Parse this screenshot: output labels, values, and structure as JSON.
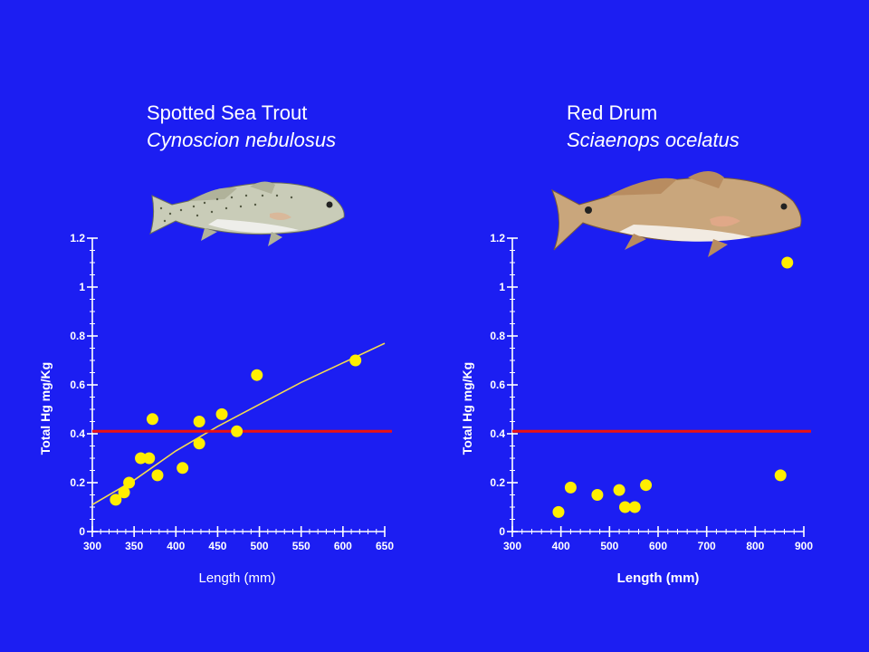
{
  "colors": {
    "background": "#1c1ef2",
    "axis": "#ffffff",
    "points": "#ffee00",
    "fit_line": "#f5dc50",
    "threshold": "#ee1111"
  },
  "chart_data": [
    {
      "type": "scatter",
      "title": "Spotted Sea Trout",
      "subtitle": "Cynoscion nebulosus",
      "xlabel": "Length (mm)",
      "ylabel": "Total Hg mg/Kg",
      "xlim": [
        300,
        650
      ],
      "ylim": [
        0,
        1.2
      ],
      "xticks": [
        300,
        350,
        400,
        450,
        500,
        550,
        600,
        650
      ],
      "yticks": [
        0,
        0.2,
        0.4,
        0.6,
        0.8,
        1,
        1.2
      ],
      "xtick_labels": [
        "300",
        "350",
        "400",
        "450",
        "500",
        "550",
        "600",
        "650"
      ],
      "ytick_labels": [
        "0",
        "0.2",
        "0.4",
        "0.6",
        "0.8",
        "1",
        "1.2"
      ],
      "x_minor": 10,
      "y_minor": 0.05,
      "grid": false,
      "illustration": "spotted-sea-trout",
      "threshold": 0.41,
      "trend": [
        [
          300,
          0.11
        ],
        [
          350,
          0.21
        ],
        [
          400,
          0.33
        ],
        [
          450,
          0.43
        ],
        [
          500,
          0.52
        ],
        [
          550,
          0.61
        ],
        [
          600,
          0.69
        ],
        [
          650,
          0.77
        ]
      ],
      "points": [
        {
          "x": 328,
          "y": 0.13
        },
        {
          "x": 338,
          "y": 0.16
        },
        {
          "x": 344,
          "y": 0.2
        },
        {
          "x": 358,
          "y": 0.3
        },
        {
          "x": 368,
          "y": 0.3
        },
        {
          "x": 378,
          "y": 0.23
        },
        {
          "x": 372,
          "y": 0.46
        },
        {
          "x": 408,
          "y": 0.26
        },
        {
          "x": 428,
          "y": 0.36
        },
        {
          "x": 428,
          "y": 0.45
        },
        {
          "x": 455,
          "y": 0.48
        },
        {
          "x": 473,
          "y": 0.41
        },
        {
          "x": 497,
          "y": 0.64
        },
        {
          "x": 615,
          "y": 0.7
        }
      ]
    },
    {
      "type": "scatter",
      "title": "Red Drum",
      "subtitle": "Sciaenops ocelatus",
      "xlabel": "Length (mm)",
      "ylabel": "Total Hg mg/Kg",
      "xlim": [
        300,
        900
      ],
      "ylim": [
        0,
        1.2
      ],
      "xticks": [
        300,
        400,
        500,
        600,
        700,
        800,
        900
      ],
      "yticks": [
        0,
        0.2,
        0.4,
        0.6,
        0.8,
        1,
        1.2
      ],
      "xtick_labels": [
        "300",
        "400",
        "500",
        "600",
        "700",
        "800",
        "900"
      ],
      "ytick_labels": [
        "0",
        "0.2",
        "0.4",
        "0.6",
        "0.8",
        "1",
        "1.2"
      ],
      "x_minor": 20,
      "y_minor": 0.05,
      "grid": false,
      "illustration": "red-drum",
      "threshold": 0.41,
      "points": [
        {
          "x": 395,
          "y": 0.08
        },
        {
          "x": 420,
          "y": 0.18
        },
        {
          "x": 475,
          "y": 0.15
        },
        {
          "x": 520,
          "y": 0.17
        },
        {
          "x": 532,
          "y": 0.1
        },
        {
          "x": 552,
          "y": 0.1
        },
        {
          "x": 575,
          "y": 0.19
        },
        {
          "x": 852,
          "y": 0.23
        },
        {
          "x": 866,
          "y": 1.1
        }
      ]
    }
  ]
}
